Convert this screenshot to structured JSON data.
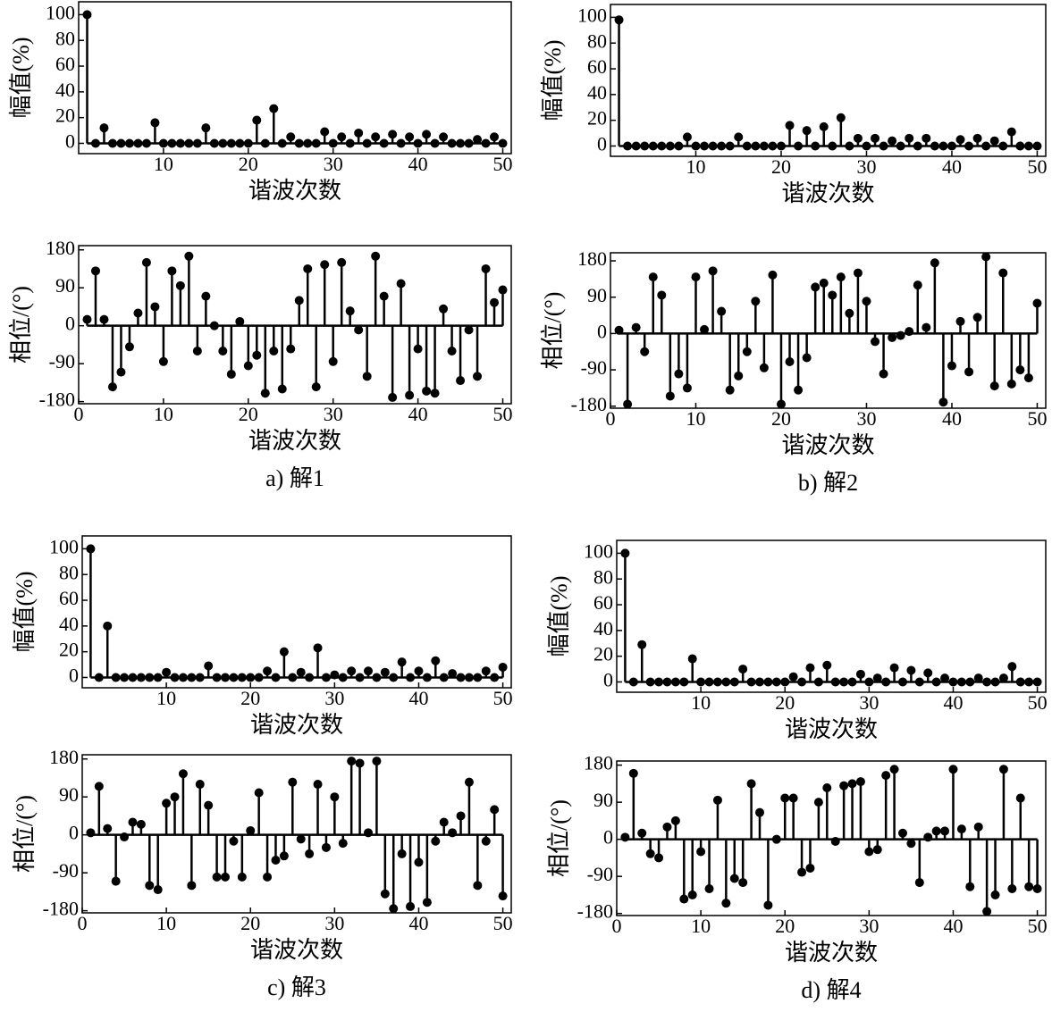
{
  "chart_data": [
    {
      "type": "stem",
      "ylabel": "幅值(%)",
      "xlabel": "谐波次数",
      "x": [
        1,
        2,
        3,
        4,
        5,
        6,
        7,
        8,
        9,
        10,
        11,
        12,
        13,
        14,
        15,
        16,
        17,
        18,
        19,
        20,
        21,
        22,
        23,
        24,
        25,
        26,
        27,
        28,
        29,
        30,
        31,
        32,
        33,
        34,
        35,
        36,
        37,
        38,
        39,
        40,
        41,
        42,
        43,
        44,
        45,
        46,
        47,
        48,
        49,
        50
      ],
      "values": [
        100,
        0,
        12,
        0,
        0,
        0,
        0,
        0,
        16,
        0,
        0,
        0,
        0,
        0,
        12,
        0,
        0,
        0,
        0,
        0,
        18,
        0,
        27,
        0,
        5,
        0,
        0,
        0,
        9,
        0,
        5,
        0,
        8,
        0,
        5,
        0,
        7,
        0,
        5,
        0,
        7,
        0,
        5,
        0,
        0,
        0,
        3,
        0,
        5,
        0
      ],
      "color": "#000000",
      "xlim": [
        0,
        51
      ],
      "ylim": [
        -8,
        110
      ],
      "xticks": [
        10,
        20,
        30,
        40,
        50
      ],
      "yticks": [
        0,
        20,
        40,
        60,
        80,
        100
      ]
    },
    {
      "type": "stem",
      "ylabel": "相位/(°)",
      "xlabel": "谐波次数",
      "caption": "a) 解1",
      "x": [
        1,
        2,
        3,
        4,
        5,
        6,
        7,
        8,
        9,
        10,
        11,
        12,
        13,
        14,
        15,
        16,
        17,
        18,
        19,
        20,
        21,
        22,
        23,
        24,
        25,
        26,
        27,
        28,
        29,
        30,
        31,
        32,
        33,
        34,
        35,
        36,
        37,
        38,
        39,
        40,
        41,
        42,
        43,
        44,
        45,
        46,
        47,
        48,
        49,
        50
      ],
      "values": [
        15,
        130,
        15,
        -145,
        -110,
        -50,
        30,
        150,
        45,
        -85,
        130,
        95,
        165,
        -60,
        70,
        0,
        -60,
        -115,
        10,
        -95,
        -70,
        -160,
        -60,
        -150,
        -55,
        60,
        135,
        -145,
        145,
        -85,
        150,
        35,
        -10,
        -120,
        165,
        70,
        -170,
        100,
        -165,
        -55,
        -155,
        -160,
        40,
        -60,
        -130,
        -10,
        -120,
        135,
        55,
        85
      ],
      "color": "#000000",
      "xlim": [
        0,
        51
      ],
      "ylim": [
        -185,
        190
      ],
      "xticks": [
        0,
        10,
        20,
        30,
        40,
        50
      ],
      "yticks": [
        -180,
        -90,
        0,
        90,
        180
      ]
    },
    {
      "type": "stem",
      "ylabel": "幅值(%)",
      "xlabel": "谐波次数",
      "x": [
        1,
        2,
        3,
        4,
        5,
        6,
        7,
        8,
        9,
        10,
        11,
        12,
        13,
        14,
        15,
        16,
        17,
        18,
        19,
        20,
        21,
        22,
        23,
        24,
        25,
        26,
        27,
        28,
        29,
        30,
        31,
        32,
        33,
        34,
        35,
        36,
        37,
        38,
        39,
        40,
        41,
        42,
        43,
        44,
        45,
        46,
        47,
        48,
        49,
        50
      ],
      "values": [
        98,
        0,
        0,
        0,
        0,
        0,
        0,
        0,
        7,
        0,
        0,
        0,
        0,
        0,
        7,
        0,
        0,
        0,
        0,
        0,
        16,
        0,
        12,
        0,
        15,
        0,
        22,
        0,
        6,
        0,
        6,
        0,
        4,
        0,
        6,
        0,
        6,
        0,
        0,
        0,
        5,
        0,
        6,
        0,
        4,
        0,
        11,
        0,
        0,
        0
      ],
      "color": "#000000",
      "xlim": [
        0,
        51
      ],
      "ylim": [
        -8,
        110
      ],
      "xticks": [
        10,
        20,
        30,
        40,
        50
      ],
      "yticks": [
        0,
        20,
        40,
        60,
        80,
        100
      ]
    },
    {
      "type": "stem",
      "ylabel": "相位/(°)",
      "xlabel": "谐波次数",
      "caption": "b) 解2",
      "x": [
        1,
        2,
        3,
        4,
        5,
        6,
        7,
        8,
        9,
        10,
        11,
        12,
        13,
        14,
        15,
        16,
        17,
        18,
        19,
        20,
        21,
        22,
        23,
        24,
        25,
        26,
        27,
        28,
        29,
        30,
        31,
        32,
        33,
        34,
        35,
        36,
        37,
        38,
        39,
        40,
        41,
        42,
        43,
        44,
        45,
        46,
        47,
        48,
        49,
        50
      ],
      "values": [
        8,
        -175,
        15,
        -45,
        140,
        95,
        -155,
        -100,
        -135,
        140,
        10,
        155,
        55,
        -140,
        -105,
        -45,
        80,
        -85,
        145,
        -175,
        -70,
        -140,
        -60,
        115,
        125,
        95,
        140,
        50,
        150,
        80,
        -20,
        -100,
        -10,
        -5,
        5,
        120,
        15,
        175,
        -170,
        -80,
        30,
        -95,
        40,
        190,
        -130,
        150,
        -125,
        -90,
        -110,
        75
      ],
      "color": "#000000",
      "xlim": [
        0,
        51
      ],
      "ylim": [
        -185,
        200
      ],
      "xticks": [
        0,
        10,
        20,
        30,
        40,
        50
      ],
      "yticks": [
        -180,
        -90,
        0,
        90,
        180
      ]
    },
    {
      "type": "stem",
      "ylabel": "幅值(%)",
      "xlabel": "谐波次数",
      "x": [
        1,
        2,
        3,
        4,
        5,
        6,
        7,
        8,
        9,
        10,
        11,
        12,
        13,
        14,
        15,
        16,
        17,
        18,
        19,
        20,
        21,
        22,
        23,
        24,
        25,
        26,
        27,
        28,
        29,
        30,
        31,
        32,
        33,
        34,
        35,
        36,
        37,
        38,
        39,
        40,
        41,
        42,
        43,
        44,
        45,
        46,
        47,
        48,
        49,
        50
      ],
      "values": [
        100,
        0,
        40,
        0,
        0,
        0,
        0,
        0,
        0,
        4,
        0,
        0,
        0,
        0,
        9,
        0,
        0,
        0,
        0,
        0,
        0,
        5,
        0,
        20,
        0,
        4,
        0,
        23,
        0,
        2,
        0,
        5,
        0,
        5,
        0,
        4,
        0,
        12,
        0,
        5,
        0,
        13,
        0,
        3,
        0,
        0,
        0,
        5,
        0,
        8
      ],
      "color": "#000000",
      "xlim": [
        0,
        51
      ],
      "ylim": [
        -8,
        110
      ],
      "xticks": [
        10,
        20,
        30,
        40,
        50
      ],
      "yticks": [
        0,
        20,
        40,
        60,
        80,
        100
      ]
    },
    {
      "type": "stem",
      "ylabel": "相位/(°)",
      "xlabel": "谐波次数",
      "caption": "c) 解3",
      "x": [
        1,
        2,
        3,
        4,
        5,
        6,
        7,
        8,
        9,
        10,
        11,
        12,
        13,
        14,
        15,
        16,
        17,
        18,
        19,
        20,
        21,
        22,
        23,
        24,
        25,
        26,
        27,
        28,
        29,
        30,
        31,
        32,
        33,
        34,
        35,
        36,
        37,
        38,
        39,
        40,
        41,
        42,
        43,
        44,
        45,
        46,
        47,
        48,
        49,
        50
      ],
      "values": [
        5,
        115,
        15,
        -110,
        -5,
        30,
        25,
        -120,
        -130,
        75,
        90,
        145,
        -120,
        120,
        70,
        -100,
        -100,
        -15,
        -100,
        10,
        100,
        -100,
        -60,
        -50,
        125,
        -10,
        -45,
        120,
        -30,
        90,
        -20,
        175,
        170,
        5,
        175,
        -140,
        -175,
        -45,
        -170,
        -65,
        -160,
        -15,
        30,
        5,
        45,
        125,
        -120,
        -15,
        60,
        -145
      ],
      "color": "#000000",
      "xlim": [
        0,
        51
      ],
      "ylim": [
        -185,
        190
      ],
      "xticks": [
        0,
        10,
        20,
        30,
        40,
        50
      ],
      "yticks": [
        -180,
        -90,
        0,
        90,
        180
      ]
    },
    {
      "type": "stem",
      "ylabel": "幅值(%)",
      "xlabel": "谐波次数",
      "x": [
        1,
        2,
        3,
        4,
        5,
        6,
        7,
        8,
        9,
        10,
        11,
        12,
        13,
        14,
        15,
        16,
        17,
        18,
        19,
        20,
        21,
        22,
        23,
        24,
        25,
        26,
        27,
        28,
        29,
        30,
        31,
        32,
        33,
        34,
        35,
        36,
        37,
        38,
        39,
        40,
        41,
        42,
        43,
        44,
        45,
        46,
        47,
        48,
        49,
        50
      ],
      "values": [
        100,
        0,
        29,
        0,
        0,
        0,
        0,
        0,
        18,
        0,
        0,
        0,
        0,
        0,
        10,
        0,
        0,
        0,
        0,
        0,
        4,
        0,
        11,
        0,
        13,
        0,
        0,
        0,
        6,
        0,
        3,
        0,
        11,
        0,
        9,
        0,
        7,
        0,
        3,
        0,
        0,
        0,
        3,
        0,
        0,
        3,
        12,
        0,
        0,
        0
      ],
      "color": "#000000",
      "xlim": [
        0,
        51
      ],
      "ylim": [
        -8,
        110
      ],
      "xticks": [
        10,
        20,
        30,
        40,
        50
      ],
      "yticks": [
        0,
        20,
        40,
        60,
        80,
        100
      ]
    },
    {
      "type": "stem",
      "ylabel": "相位/(°)",
      "xlabel": "谐波次数",
      "caption": "d) 解4",
      "x": [
        1,
        2,
        3,
        4,
        5,
        6,
        7,
        8,
        9,
        10,
        11,
        12,
        13,
        14,
        15,
        16,
        17,
        18,
        19,
        20,
        21,
        22,
        23,
        24,
        25,
        26,
        27,
        28,
        29,
        30,
        31,
        32,
        33,
        34,
        35,
        36,
        37,
        38,
        39,
        40,
        41,
        42,
        43,
        44,
        45,
        46,
        47,
        48,
        49,
        50
      ],
      "values": [
        5,
        160,
        15,
        -35,
        -45,
        30,
        45,
        -145,
        -135,
        -30,
        -120,
        95,
        -155,
        -95,
        -105,
        135,
        65,
        -160,
        0,
        100,
        100,
        -80,
        -70,
        90,
        125,
        -5,
        130,
        135,
        140,
        -30,
        -25,
        155,
        170,
        15,
        -10,
        -105,
        5,
        20,
        20,
        170,
        25,
        -115,
        30,
        -175,
        -135,
        170,
        -120,
        100,
        -115,
        -120
      ],
      "color": "#000000",
      "xlim": [
        0,
        51
      ],
      "ylim": [
        -185,
        190
      ],
      "xticks": [
        0,
        10,
        20,
        30,
        40,
        50
      ],
      "yticks": [
        -180,
        -90,
        0,
        90,
        180
      ]
    }
  ]
}
